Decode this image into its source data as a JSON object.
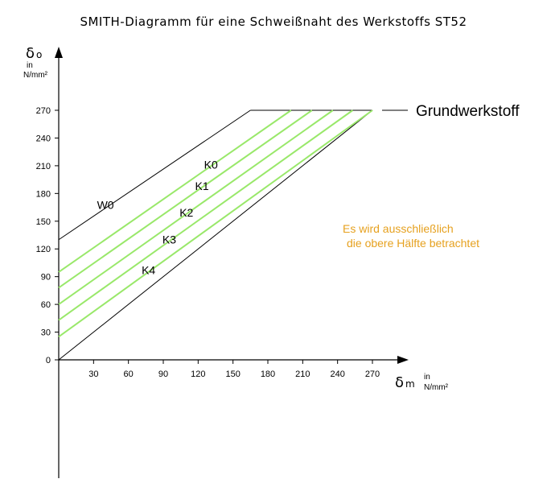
{
  "chart_data": {
    "type": "line",
    "title": "SMITH-Diagramm für eine Schweißnaht des Werkstoffs ST52",
    "xlabel": {
      "symbol": "δ",
      "sub": "m",
      "unit_in": "in",
      "unit": "N/mm²"
    },
    "ylabel": {
      "symbol": "δ",
      "sub": "o",
      "unit_in": "in",
      "unit": "N/mm²"
    },
    "xlim": [
      0,
      300
    ],
    "ylim": [
      -110,
      330
    ],
    "x_ticks": [
      30,
      60,
      90,
      120,
      150,
      180,
      210,
      240,
      270
    ],
    "y_ticks": [
      0,
      30,
      60,
      90,
      120,
      150,
      180,
      210,
      240,
      270
    ],
    "upper_limit": 270,
    "lower_boundary": [
      [
        0,
        0
      ],
      [
        270,
        270
      ]
    ],
    "series": [
      {
        "name": "W0",
        "color": "#000000",
        "points": [
          [
            0,
            130
          ],
          [
            165,
            270
          ]
        ]
      },
      {
        "name": "K0",
        "color": "#99e86a",
        "points": [
          [
            0,
            95
          ],
          [
            200,
            270
          ]
        ]
      },
      {
        "name": "K1",
        "color": "#99e86a",
        "points": [
          [
            0,
            78
          ],
          [
            218,
            270
          ]
        ]
      },
      {
        "name": "K2",
        "color": "#99e86a",
        "points": [
          [
            0,
            60
          ],
          [
            236,
            270
          ]
        ]
      },
      {
        "name": "K3",
        "color": "#99e86a",
        "points": [
          [
            0,
            43
          ],
          [
            253,
            270
          ]
        ]
      },
      {
        "name": "K4",
        "color": "#99e86a",
        "points": [
          [
            0,
            25
          ],
          [
            270,
            270
          ]
        ]
      }
    ],
    "reference_label": "Grundwerkstoff",
    "annotation": [
      "Es wird ausschließlich",
      "die obere Hälfte betrachtet"
    ],
    "annotation_color": "#e6a11f",
    "grid": false
  }
}
